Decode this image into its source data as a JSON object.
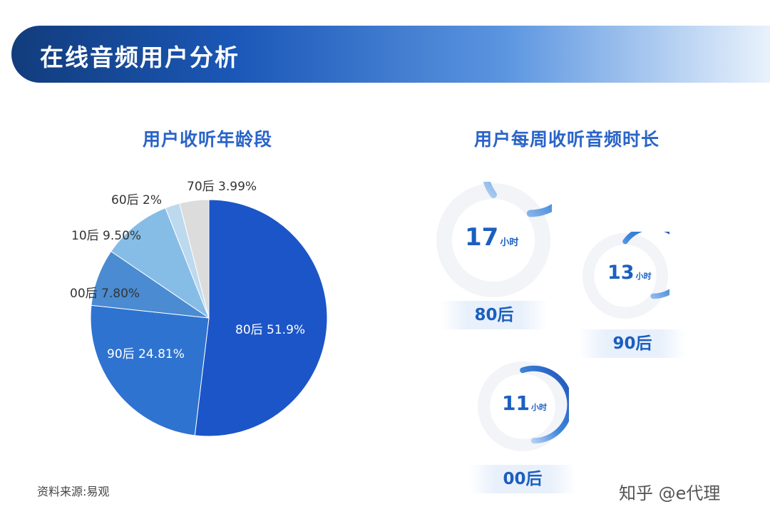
{
  "header": {
    "title": "在线音频用户分析"
  },
  "chart_data": [
    {
      "type": "pie",
      "title": "用户收听年龄段",
      "categories": [
        "80后",
        "90后",
        "00后",
        "10后",
        "60后",
        "70后"
      ],
      "values": [
        51.9,
        24.81,
        7.8,
        9.5,
        2,
        3.99
      ],
      "labels": [
        "80后  51.9%",
        "90后  24.81%",
        "00后  7.80%",
        "10后  9.50%",
        "60后  2%",
        "70后  3.99%"
      ],
      "colors": [
        "#1c55c7",
        "#2f73d0",
        "#4a8bd2",
        "#86bde6",
        "#bcd9ee",
        "#dcdcdc"
      ]
    },
    {
      "type": "gauge",
      "title": "用户每周收听音频时长",
      "unit": "小时",
      "categories": [
        "80后",
        "90后",
        "00后"
      ],
      "values": [
        17,
        13,
        11
      ]
    }
  ],
  "footer": {
    "source": "资料来源:易观",
    "credit": "知乎 @e代理"
  }
}
